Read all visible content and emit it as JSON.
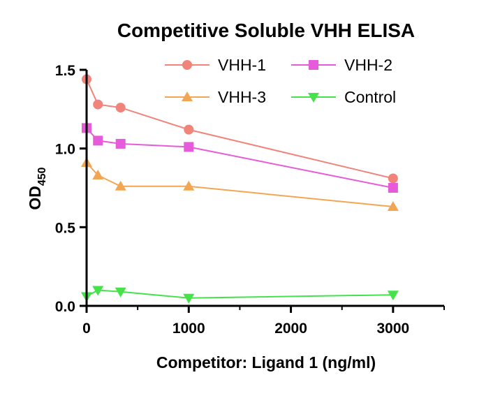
{
  "chart_data": {
    "type": "line",
    "title": "Competitive Soluble VHH ELISA",
    "xlabel": "Competitor: Ligand 1 (ng/ml)",
    "ylabel_main": "OD",
    "ylabel_sub": "450",
    "xlim": [
      0,
      3500
    ],
    "ylim": [
      0,
      1.5
    ],
    "xticks": [
      0,
      1000,
      2000,
      3000
    ],
    "yticks": [
      0.0,
      0.5,
      1.0,
      1.5
    ],
    "xtick_labels": [
      "0",
      "1000",
      "2000",
      "3000"
    ],
    "ytick_labels": [
      "0.0",
      "0.5",
      "1.0",
      "1.5"
    ],
    "grid": false,
    "legend_placement": "top",
    "series": [
      {
        "name": "VHH-1",
        "color": "#F0837A",
        "marker": "circle",
        "x": [
          0,
          111,
          333,
          1000,
          3000
        ],
        "y": [
          1.44,
          1.28,
          1.26,
          1.12,
          0.81
        ]
      },
      {
        "name": "VHH-2",
        "color": "#E65BD9",
        "marker": "square",
        "x": [
          0,
          111,
          333,
          1000,
          3000
        ],
        "y": [
          1.13,
          1.05,
          1.03,
          1.01,
          0.75
        ]
      },
      {
        "name": "VHH-3",
        "color": "#F2A553",
        "marker": "triangle-up",
        "x": [
          0,
          111,
          333,
          1000,
          3000
        ],
        "y": [
          0.91,
          0.83,
          0.76,
          0.76,
          0.63
        ]
      },
      {
        "name": "Control",
        "color": "#45E24A",
        "marker": "triangle-down",
        "x": [
          0,
          111,
          333,
          1000,
          3000
        ],
        "y": [
          0.06,
          0.1,
          0.09,
          0.05,
          0.07
        ]
      }
    ]
  }
}
